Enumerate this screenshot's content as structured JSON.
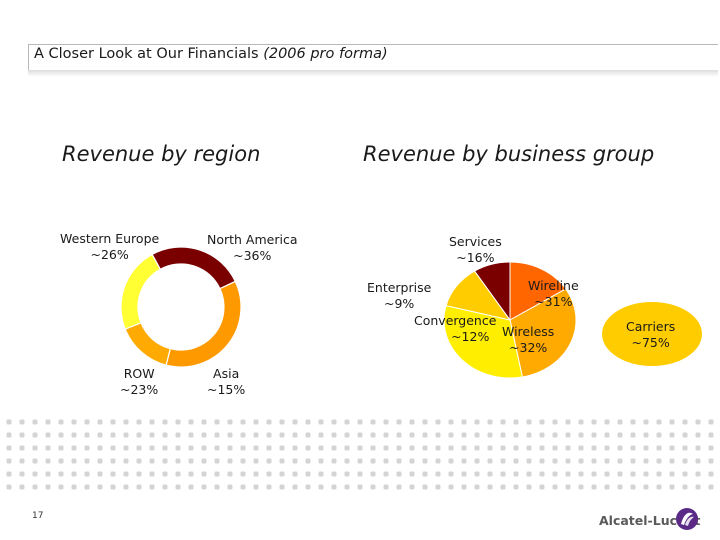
{
  "slide": {
    "title_main": "A Closer Look at Our Financials ",
    "title_italic": "(2006 pro forma)",
    "page_number": "17",
    "brand": "Alcatel-Lucent"
  },
  "chart_data": [
    {
      "type": "pie",
      "style": "donut",
      "title": "Revenue by region",
      "slices": [
        {
          "label": "Western Europe",
          "value": 26,
          "value_label": "~26%",
          "color": "#7a0000"
        },
        {
          "label": "North America",
          "value": 36,
          "value_label": "~36%",
          "color": "#ff9900"
        },
        {
          "label": "Asia",
          "value": 15,
          "value_label": "~15%",
          "color": "#ffaa00"
        },
        {
          "label": "ROW",
          "value": 23,
          "value_label": "~23%",
          "color": "#ffff33"
        }
      ]
    },
    {
      "type": "pie",
      "title": "Revenue by business group",
      "slices": [
        {
          "label": "Services",
          "value": 16,
          "value_label": "~16%",
          "color": "#ff6600"
        },
        {
          "label": "Wireline",
          "value": 31,
          "value_label": "~31%",
          "color": "#ffaa00"
        },
        {
          "label": "Wireless",
          "value": 32,
          "value_label": "~32%",
          "color": "#ffee00"
        },
        {
          "label": "Convergence",
          "value": 12,
          "value_label": "~12%",
          "color": "#ffcc00"
        },
        {
          "label": "Enterprise",
          "value": 9,
          "value_label": "~9%",
          "color": "#7a0000"
        }
      ],
      "callout": {
        "label": "Carriers",
        "value_label": "~75%",
        "color": "#ffcc00"
      }
    }
  ]
}
